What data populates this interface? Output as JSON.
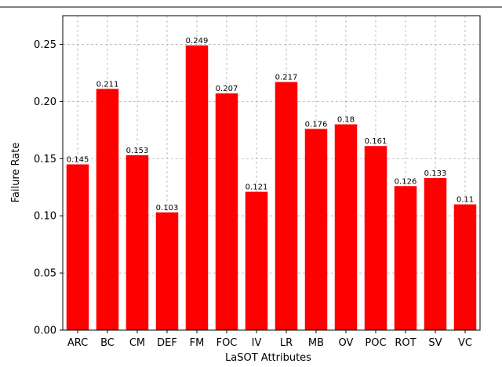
{
  "chart_data": {
    "type": "bar",
    "categories": [
      "ARC",
      "BC",
      "CM",
      "DEF",
      "FM",
      "FOC",
      "IV",
      "LR",
      "MB",
      "OV",
      "POC",
      "ROT",
      "SV",
      "VC"
    ],
    "values": [
      0.145,
      0.211,
      0.153,
      0.103,
      0.249,
      0.207,
      0.121,
      0.217,
      0.176,
      0.18,
      0.161,
      0.126,
      0.133,
      0.11
    ],
    "data_labels": [
      "0.145",
      "0.211",
      "0.153",
      "0.103",
      "0.249",
      "0.207",
      "0.121",
      "0.217",
      "0.176",
      "0.18",
      "0.161",
      "0.126",
      "0.133",
      "0.11"
    ],
    "xlabel": "LaSOT Attributes",
    "ylabel": "Failure Rate",
    "ylim": [
      0,
      0.275
    ],
    "yticks": [
      0.0,
      0.05,
      0.1,
      0.15,
      0.2,
      0.25
    ],
    "ytick_labels": [
      "0.00",
      "0.05",
      "0.10",
      "0.15",
      "0.20",
      "0.25"
    ],
    "bar_color": "#ff0000",
    "grid": true
  }
}
